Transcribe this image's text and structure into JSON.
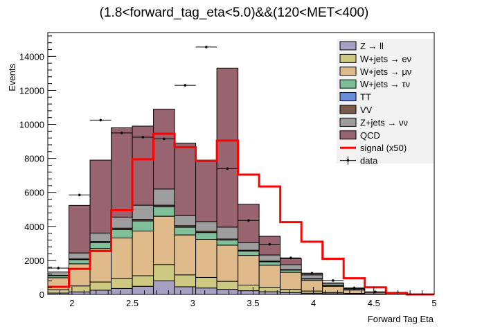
{
  "chart_data": {
    "type": "bar",
    "stacked": true,
    "title": "(1.8<forward_tag_eta<5.0)&&(120<MET<400)",
    "xlabel": "Forward Tag Eta",
    "ylabel": "Events",
    "xlim": [
      1.8,
      5.0
    ],
    "ylim": [
      0,
      15400
    ],
    "xticks": [
      2,
      2.5,
      3,
      3.5,
      4,
      4.5,
      5
    ],
    "yticks": [
      0,
      2000,
      4000,
      6000,
      8000,
      10000,
      12000,
      14000
    ],
    "legend_position": "top-right",
    "bin_edges": [
      1.8,
      1.975,
      2.15,
      2.325,
      2.5,
      2.675,
      2.85,
      3.025,
      3.2,
      3.375,
      3.55,
      3.725,
      3.9,
      4.075,
      4.25,
      4.425,
      4.6
    ],
    "stack_series": [
      {
        "name": "Z → ll",
        "color": "#a6a1c2",
        "values": [
          80,
          150,
          250,
          350,
          480,
          800,
          450,
          380,
          300,
          220,
          160,
          110,
          70,
          40,
          20,
          10
        ]
      },
      {
        "name": "W+jets → eν",
        "color": "#cdc882",
        "values": [
          200,
          350,
          480,
          600,
          620,
          960,
          700,
          620,
          470,
          330,
          260,
          190,
          130,
          70,
          40,
          20
        ]
      },
      {
        "name": "W+jets → μν",
        "color": "#dfbb8c",
        "values": [
          700,
          1300,
          1970,
          2370,
          2630,
          2840,
          2350,
          2240,
          2130,
          1750,
          1300,
          1000,
          630,
          370,
          200,
          90
        ]
      },
      {
        "name": "W+jets → τν",
        "color": "#7fbf9a",
        "values": [
          120,
          250,
          350,
          500,
          590,
          550,
          450,
          400,
          300,
          250,
          200,
          130,
          80,
          50,
          25,
          10
        ]
      },
      {
        "name": "TT",
        "color": "#6a8fd8",
        "values": [
          0,
          0,
          0,
          0,
          0,
          0,
          0,
          0,
          0,
          0,
          0,
          0,
          0,
          0,
          0,
          0
        ]
      },
      {
        "name": "VV",
        "color": "#7a5a4a",
        "values": [
          20,
          40,
          60,
          80,
          100,
          100,
          90,
          80,
          60,
          50,
          40,
          30,
          20,
          10,
          5,
          0
        ]
      },
      {
        "name": "Z+jets → νν",
        "color": "#9e9e9e",
        "values": [
          200,
          350,
          500,
          650,
          830,
          950,
          600,
          560,
          700,
          450,
          360,
          290,
          220,
          120,
          60,
          20
        ]
      },
      {
        "name": "QCD",
        "color": "#976470",
        "values": [
          0,
          2800,
          4290,
          5250,
          4650,
          4700,
          4260,
          3620,
          9350,
          2250,
          1100,
          350,
          100,
          20,
          0,
          0
        ]
      }
    ],
    "signal": {
      "name": "signal (x50)",
      "color": "#ff0000",
      "values": [
        450,
        1500,
        2550,
        4950,
        7950,
        9450,
        8650,
        7850,
        9050,
        7050,
        6350,
        4250,
        3100,
        2100,
        950,
        420,
        90,
        0
      ]
    },
    "signal_edges": [
      1.8,
      1.975,
      2.15,
      2.325,
      2.5,
      2.675,
      2.85,
      3.025,
      3.2,
      3.375,
      3.55,
      3.725,
      3.9,
      4.075,
      4.25,
      4.425,
      4.6,
      4.775,
      5.0
    ],
    "data": {
      "name": "data",
      "x": [
        1.8875,
        2.0625,
        2.2375,
        2.4125,
        2.5875,
        2.7625,
        2.9375,
        3.1125,
        3.2875,
        3.4625,
        3.6375,
        3.8125,
        3.9875,
        4.1625,
        4.3375,
        4.5125
      ],
      "y": [
        1550,
        5850,
        10250,
        9500,
        9250,
        9150,
        12300,
        14550,
        7400,
        4350,
        2950,
        2150,
        1250,
        820,
        380,
        150
      ]
    }
  }
}
